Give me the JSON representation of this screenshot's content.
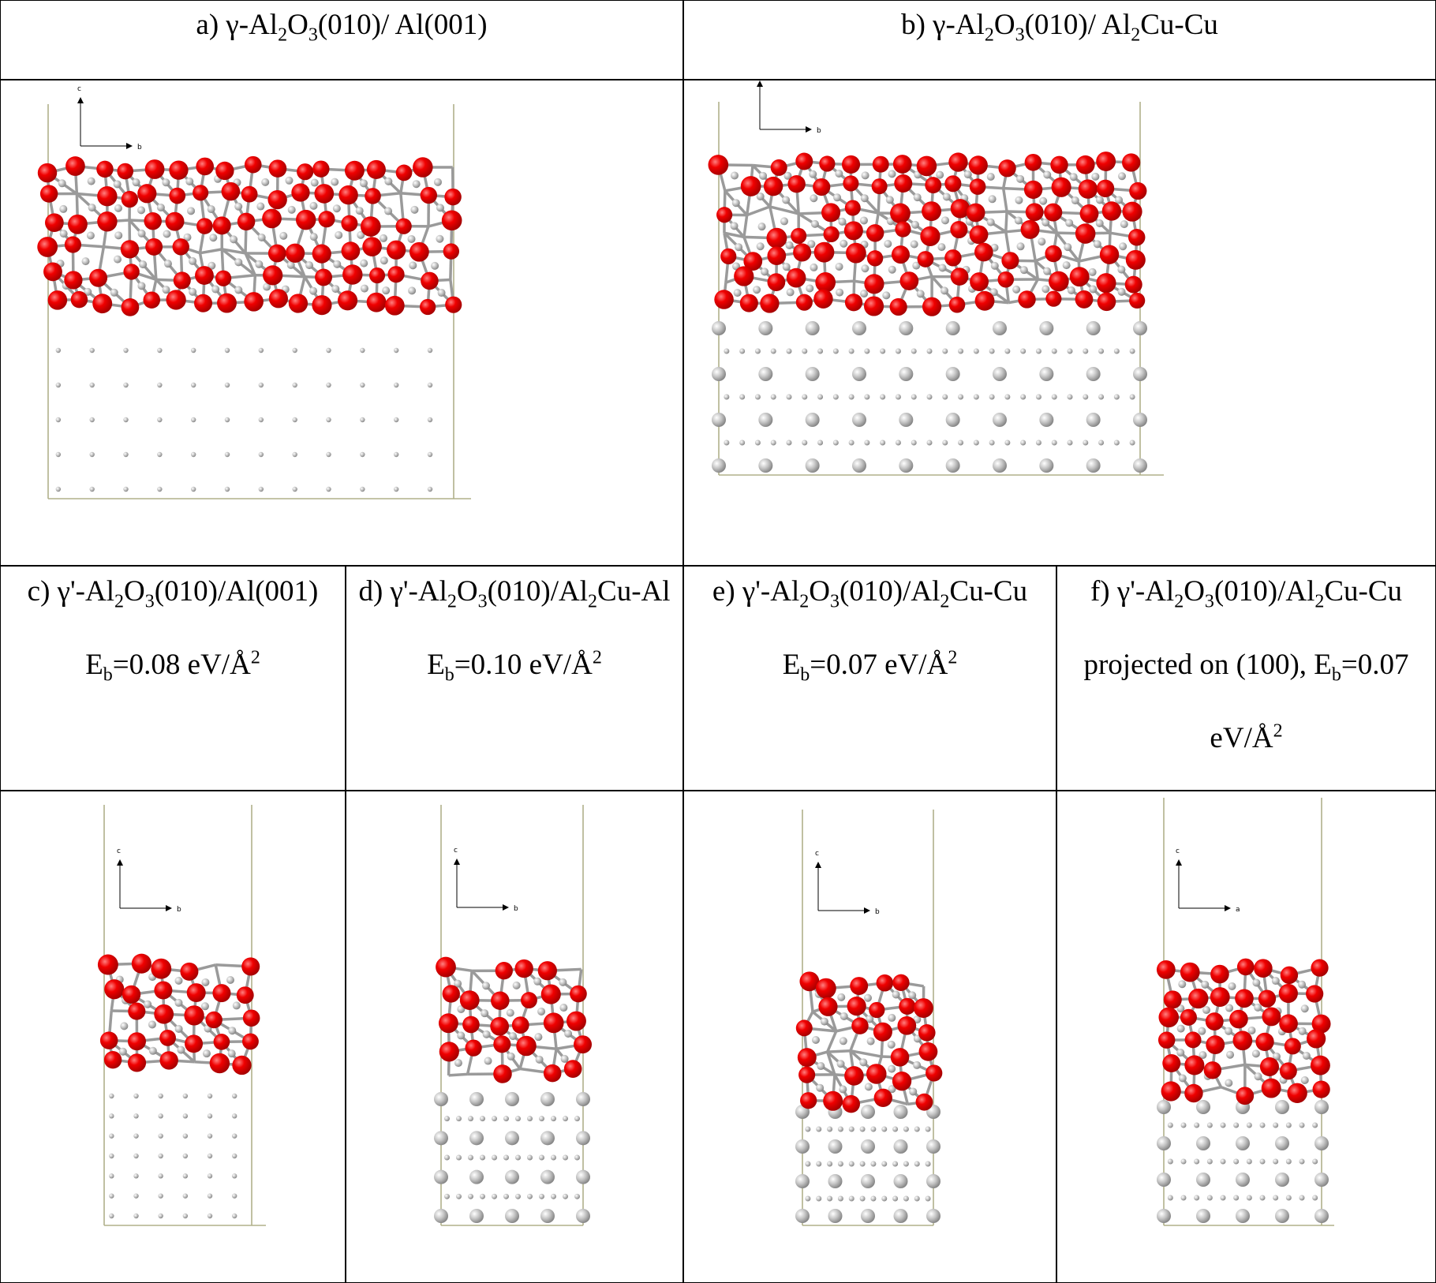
{
  "panels": [
    {
      "caption": [
        "a) γ-Al",
        {
          "sub": "2"
        },
        "O",
        {
          "sub": "3"
        },
        "(010)/ Al(001)"
      ],
      "axis_labels": [
        "c",
        "b"
      ]
    },
    {
      "caption": [
        "b) γ-Al",
        {
          "sub": "2"
        },
        "O",
        {
          "sub": "3"
        },
        "(010)/ Al",
        {
          "sub": "2"
        },
        "Cu-Cu"
      ],
      "axis_labels": [
        "c",
        "b"
      ]
    },
    {
      "caption": [
        "c) γ'-Al",
        {
          "sub": "2"
        },
        "O",
        {
          "sub": "3"
        },
        "(010)/Al(001) E",
        {
          "sub": "b"
        },
        "=0.08 eV/Å",
        {
          "sup": "2"
        }
      ],
      "axis_labels": [
        "c",
        "b"
      ]
    },
    {
      "caption": [
        "d) γ'-Al",
        {
          "sub": "2"
        },
        "O",
        {
          "sub": "3"
        },
        "(010)/Al",
        {
          "sub": "2"
        },
        "Cu-Al E",
        {
          "sub": "b"
        },
        "=0.10 eV/Å",
        {
          "sup": "2"
        }
      ],
      "axis_labels": [
        "c",
        "b"
      ]
    },
    {
      "caption": [
        "e) γ'-Al",
        {
          "sub": "2"
        },
        "O",
        {
          "sub": "3"
        },
        "(010)/Al",
        {
          "sub": "2"
        },
        "Cu-Cu E",
        {
          "sub": "b"
        },
        "=0.07 eV/Å",
        {
          "sup": "2"
        }
      ],
      "axis_labels": [
        "c",
        "b"
      ]
    },
    {
      "caption": [
        "f) γ'-Al",
        {
          "sub": "2"
        },
        "O",
        {
          "sub": "3"
        },
        "(010)/Al",
        {
          "sub": "2"
        },
        "Cu-Cu projected on (100), E",
        {
          "sub": "b"
        },
        "=0.07 eV/Å",
        {
          "sup": "2"
        }
      ],
      "axis_labels": [
        "c",
        "a"
      ]
    }
  ]
}
